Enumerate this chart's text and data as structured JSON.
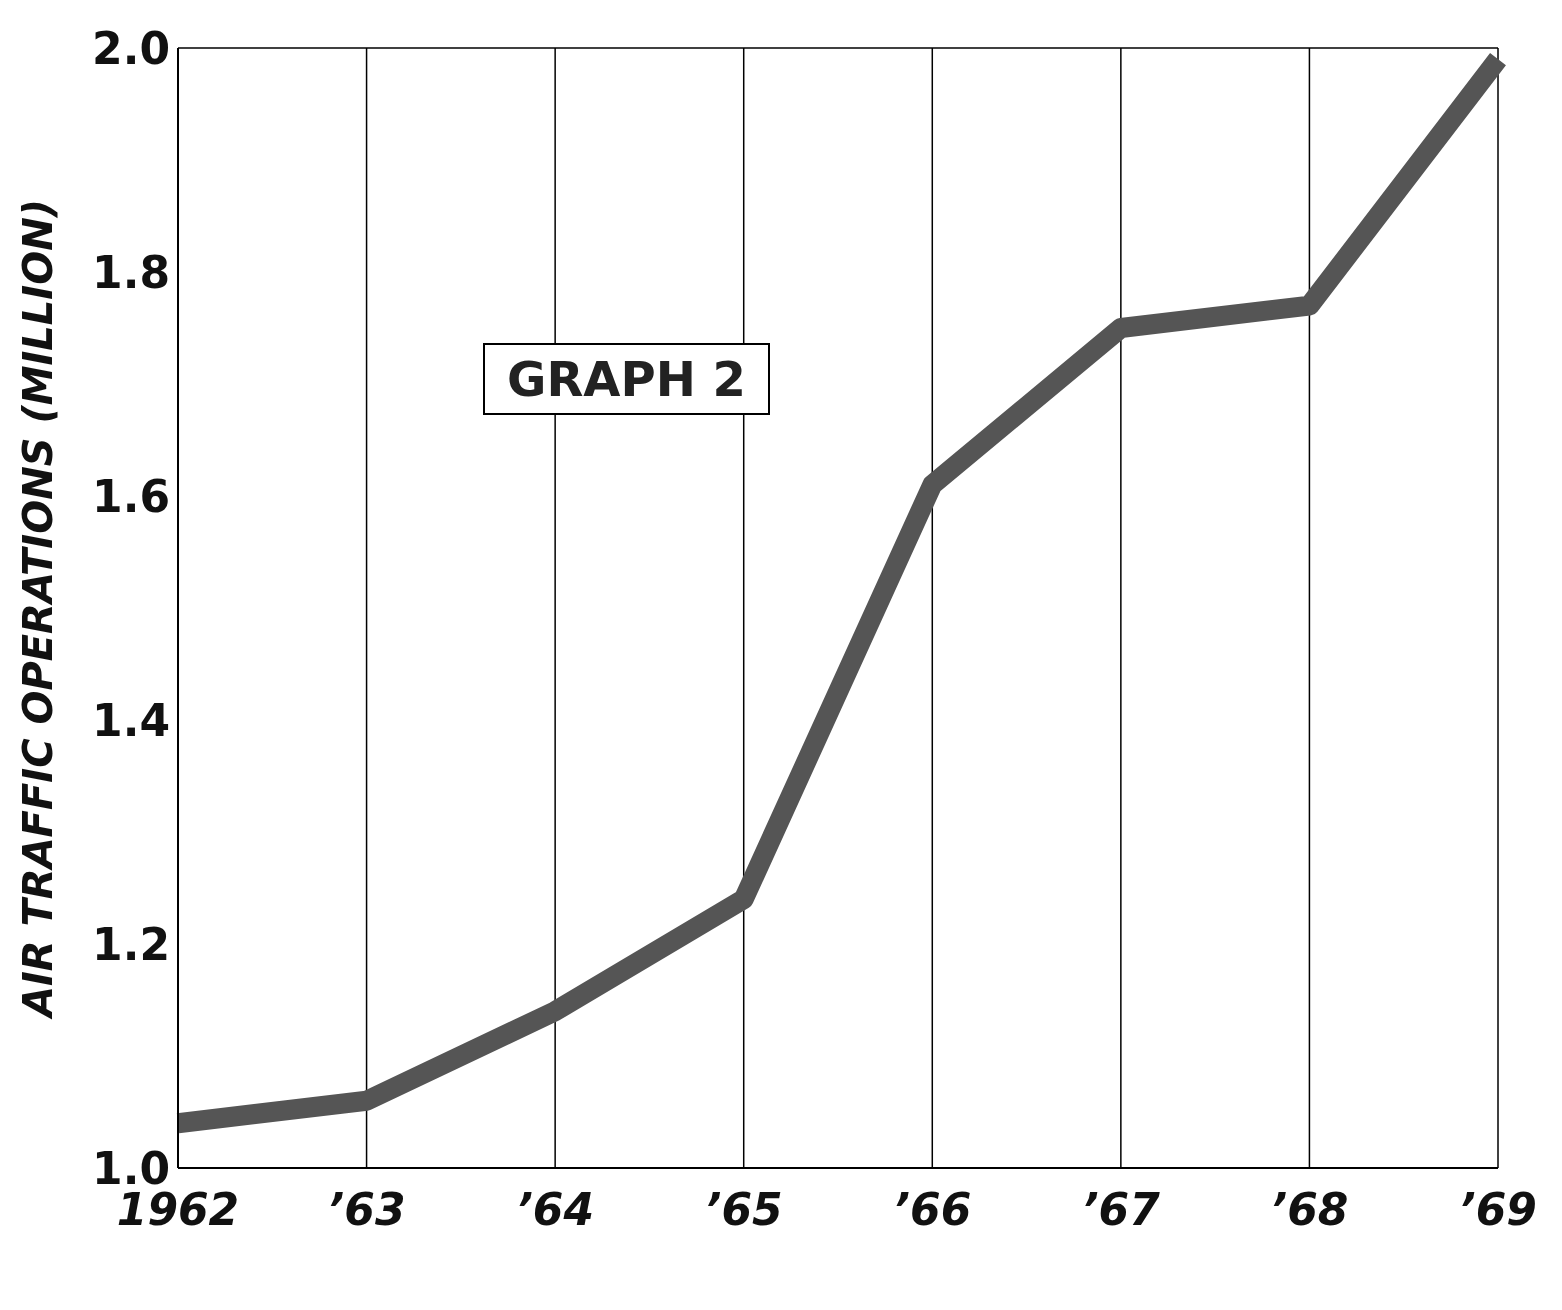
{
  "chart_data": {
    "type": "line",
    "ylabel": "AIR TRAFFIC OPERATIONS (MILLION)",
    "annotations": [
      "GRAPH 2"
    ],
    "categories": [
      "1962",
      "’63",
      "’64",
      "’65",
      "’66",
      "’67",
      "’68",
      "’69"
    ],
    "series": [
      {
        "color": "#555555",
        "values": [
          1.04,
          1.06,
          1.14,
          1.24,
          1.61,
          1.75,
          1.77,
          1.99
        ]
      }
    ],
    "ylim": [
      1.0,
      2.0
    ],
    "yticks": [
      {
        "value": 1.0,
        "label": "1.0"
      },
      1.2,
      1.4,
      1.6,
      1.8,
      {
        "value": 2.0,
        "label": "2.0"
      }
    ],
    "grid": true,
    "legend": false,
    "marker": "none",
    "line_style": "solid"
  }
}
